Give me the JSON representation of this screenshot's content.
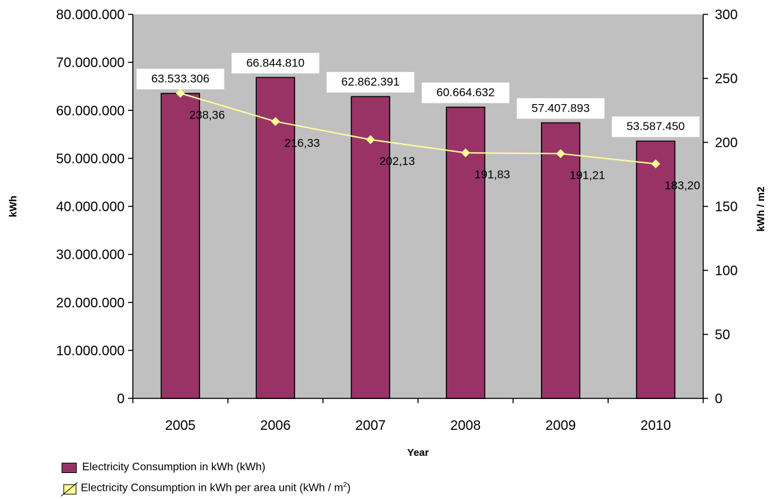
{
  "chart_data": {
    "type": "bar",
    "categories": [
      "2005",
      "2006",
      "2007",
      "2008",
      "2009",
      "2010"
    ],
    "xlabel": "Year",
    "ylabel_left": "kWh",
    "ylabel_right": "kWh / m2",
    "ylim_left": [
      0,
      80000000
    ],
    "ylim_right": [
      0,
      300
    ],
    "yticks_left": [
      "0",
      "10.000.000",
      "20.000.000",
      "30.000.000",
      "40.000.000",
      "50.000.000",
      "60.000.000",
      "70.000.000",
      "80.000.000"
    ],
    "yticks_right": [
      "0",
      "50",
      "100",
      "150",
      "200",
      "250",
      "300"
    ],
    "grid": false,
    "legend_position": "bottom-left",
    "series": [
      {
        "name": "Electricity Consumption in kWh (kWh)",
        "type": "bar",
        "axis": "left",
        "color": "#993366",
        "values": [
          63533306,
          66844810,
          62862391,
          60664632,
          57407893,
          53587450
        ],
        "labels": [
          "63.533.306",
          "66.844.810",
          "62.862.391",
          "60.664.632",
          "57.407.893",
          "53.587.450"
        ]
      },
      {
        "name": "Electricity Consumption in kWh per area unit (kWh / m",
        "name_sup": "2",
        "name_suffix": ")",
        "type": "line",
        "axis": "right",
        "color": "#FFFF99",
        "values": [
          238.36,
          216.33,
          202.13,
          191.83,
          191.21,
          183.2
        ],
        "labels": [
          "238,36",
          "216,33",
          "202,13",
          "191,83",
          "191,21",
          "183,20"
        ]
      }
    ]
  }
}
